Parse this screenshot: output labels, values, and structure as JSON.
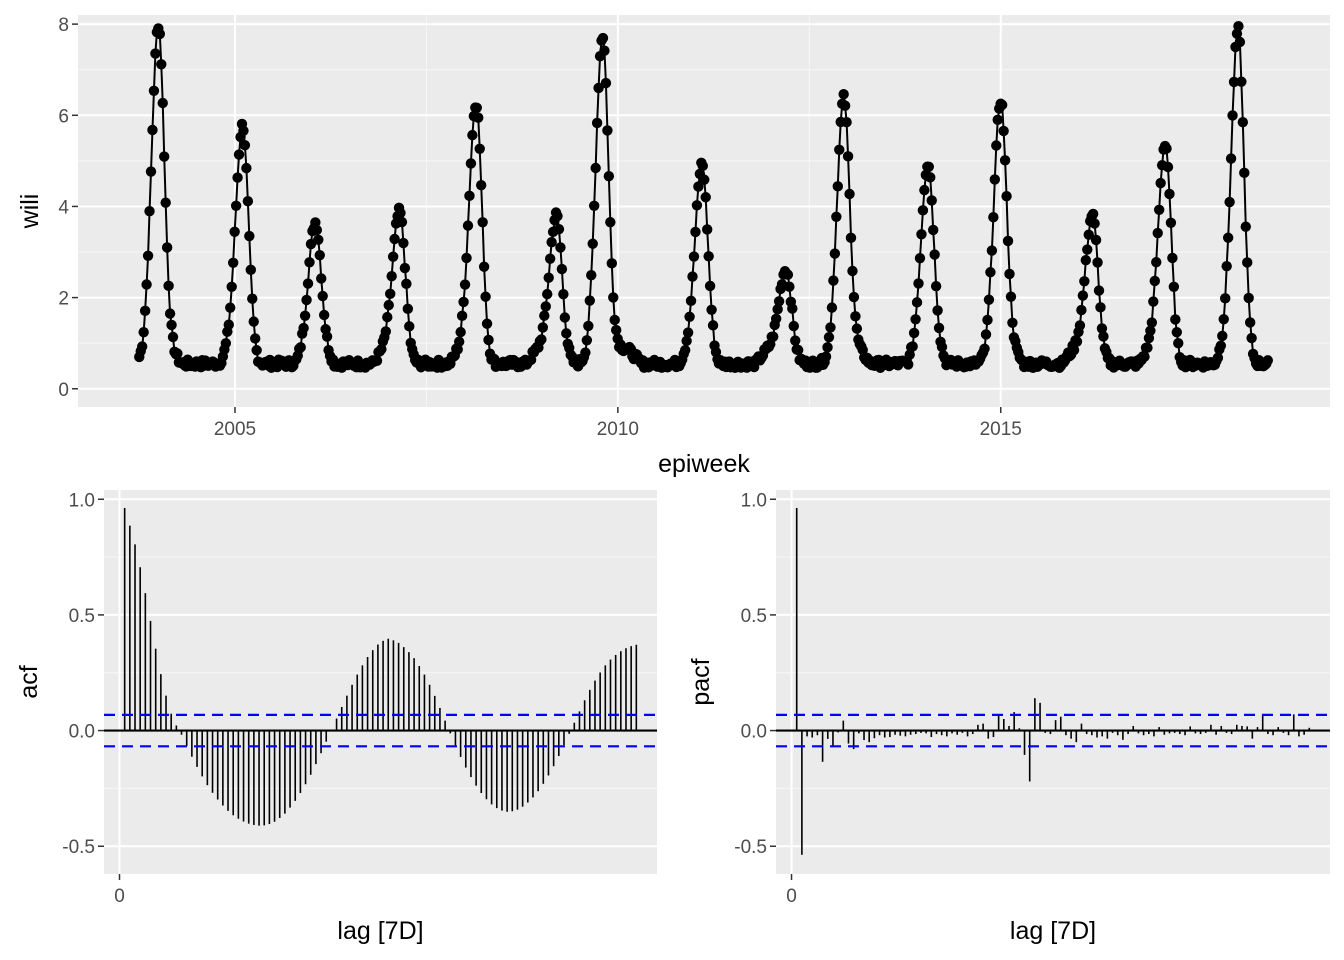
{
  "chart_data": [
    {
      "type": "line",
      "markers": true,
      "xlabel": "epiweek",
      "ylabel": "wili",
      "x_ticks": [
        2005,
        2010,
        2015
      ],
      "y_ticks": [
        0,
        2,
        4,
        6,
        8
      ],
      "xlim": [
        2002.95,
        2019.3
      ],
      "ylim": [
        -0.4,
        8.2
      ],
      "grid": true,
      "x_start": 2003.75,
      "x_end": 2018.5,
      "peaks": [
        {
          "x": 2004.0,
          "y": 7.65
        },
        {
          "x": 2005.1,
          "y": 5.45
        },
        {
          "x": 2006.05,
          "y": 3.3
        },
        {
          "x": 2007.15,
          "y": 3.6
        },
        {
          "x": 2008.15,
          "y": 6.0
        },
        {
          "x": 2009.2,
          "y": 3.6
        },
        {
          "x": 2009.8,
          "y": 7.75
        },
        {
          "x": 2011.1,
          "y": 4.6
        },
        {
          "x": 2012.2,
          "y": 2.4
        },
        {
          "x": 2012.95,
          "y": 6.1
        },
        {
          "x": 2014.05,
          "y": 4.6
        },
        {
          "x": 2015.0,
          "y": 6.0
        },
        {
          "x": 2016.2,
          "y": 3.6
        },
        {
          "x": 2017.15,
          "y": 5.1
        },
        {
          "x": 2018.1,
          "y": 7.55
        }
      ],
      "baseline_min": 0.55
    },
    {
      "type": "bar",
      "xlabel": "lag [7D]",
      "ylabel": "acf",
      "x_ticks": [
        0
      ],
      "y_ticks": [
        -0.5,
        0.0,
        0.5,
        1.0
      ],
      "xlim": [
        -3,
        104
      ],
      "ylim": [
        -0.62,
        1.04
      ],
      "ci": 0.068,
      "values": [
        0.962,
        0.886,
        0.805,
        0.706,
        0.594,
        0.474,
        0.354,
        0.244,
        0.151,
        0.073,
        0.022,
        -0.018,
        -0.067,
        -0.113,
        -0.157,
        -0.198,
        -0.236,
        -0.269,
        -0.298,
        -0.324,
        -0.347,
        -0.366,
        -0.381,
        -0.393,
        -0.402,
        -0.408,
        -0.411,
        -0.41,
        -0.404,
        -0.394,
        -0.378,
        -0.359,
        -0.333,
        -0.304,
        -0.27,
        -0.232,
        -0.191,
        -0.145,
        -0.098,
        -0.048,
        0.002,
        0.052,
        0.102,
        0.151,
        0.198,
        0.242,
        0.282,
        0.318,
        0.348,
        0.372,
        0.388,
        0.397,
        0.39,
        0.379,
        0.361,
        0.339,
        0.313,
        0.279,
        0.242,
        0.198,
        0.15,
        0.098,
        0.043,
        -0.012,
        -0.064,
        -0.114,
        -0.16,
        -0.201,
        -0.238,
        -0.27,
        -0.297,
        -0.319,
        -0.335,
        -0.346,
        -0.351,
        -0.349,
        -0.342,
        -0.329,
        -0.311,
        -0.289,
        -0.262,
        -0.23,
        -0.194,
        -0.154,
        -0.11,
        -0.063,
        -0.014,
        0.034,
        0.083,
        0.131,
        0.176,
        0.216,
        0.251,
        0.282,
        0.307,
        0.327,
        0.343,
        0.356,
        0.365,
        0.371
      ]
    },
    {
      "type": "bar",
      "xlabel": "lag [7D]",
      "ylabel": "pacf",
      "x_ticks": [
        0
      ],
      "y_ticks": [
        -0.5,
        0.0,
        0.5,
        1.0
      ],
      "xlim": [
        -3,
        104
      ],
      "ylim": [
        -0.62,
        1.04
      ],
      "ci": 0.068,
      "values": [
        0.962,
        -0.537,
        -0.025,
        -0.03,
        -0.02,
        -0.135,
        -0.036,
        -0.07,
        -0.008,
        0.043,
        -0.056,
        -0.08,
        -0.012,
        -0.041,
        -0.05,
        -0.033,
        -0.02,
        -0.03,
        -0.028,
        -0.018,
        -0.022,
        -0.025,
        -0.018,
        -0.015,
        -0.01,
        -0.012,
        -0.028,
        -0.015,
        -0.02,
        -0.025,
        -0.012,
        -0.018,
        -0.01,
        -0.025,
        -0.015,
        0.025,
        0.03,
        -0.035,
        -0.028,
        0.065,
        0.05,
        0.02,
        0.08,
        0.01,
        -0.105,
        -0.22,
        0.14,
        0.12,
        -0.01,
        -0.015,
        0.045,
        0.06,
        -0.02,
        -0.035,
        -0.05,
        0.03,
        -0.015,
        -0.02,
        -0.03,
        -0.025,
        -0.035,
        -0.01,
        -0.02,
        -0.04,
        -0.015,
        0.02,
        -0.012,
        -0.02,
        -0.015,
        -0.025,
        0.015,
        -0.018,
        -0.012,
        -0.01,
        -0.015,
        -0.02,
        0.018,
        -0.012,
        -0.015,
        -0.01,
        0.025,
        -0.018,
        0.02,
        -0.01,
        -0.015,
        0.025,
        0.02,
        0.018,
        -0.035,
        0.015,
        0.07,
        -0.015,
        -0.02,
        0.015,
        -0.01,
        -0.02,
        0.07,
        -0.025,
        -0.018,
        0.012
      ]
    }
  ]
}
